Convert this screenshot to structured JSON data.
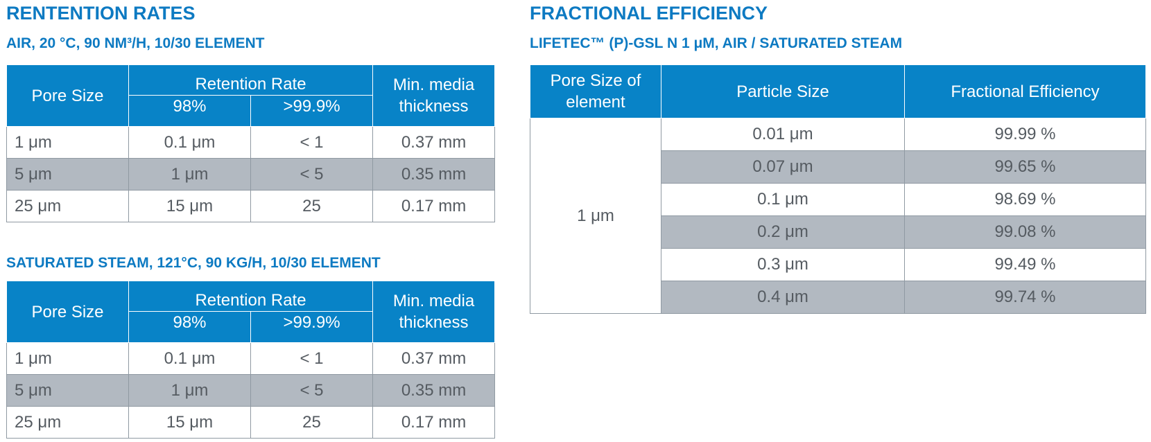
{
  "left": {
    "title": "RENTENTION RATES",
    "tables": [
      {
        "subtitle": "AIR, 20 °C, 90 NM³/H, 10/30 ELEMENT",
        "headers": {
          "pore_size": "Pore Size",
          "retention_rate": "Retention Rate",
          "col_98": "98%",
          "col_999": ">99.9%",
          "thickness_line1": "Min. media",
          "thickness_line2": "thickness"
        },
        "rows": [
          [
            "1 μm",
            "0.1 μm",
            "< 1",
            "0.37 mm"
          ],
          [
            "5 μm",
            "1 μm",
            "< 5",
            "0.35 mm"
          ],
          [
            "25 μm",
            "15 μm",
            "25",
            "0.17 mm"
          ]
        ]
      },
      {
        "subtitle": "SATURATED STEAM, 121°C, 90 KG/H, 10/30 ELEMENT",
        "headers": {
          "pore_size": "Pore Size",
          "retention_rate": "Retention Rate",
          "col_98": "98%",
          "col_999": ">99.9%",
          "thickness_line1": "Min. media",
          "thickness_line2": "thickness"
        },
        "rows": [
          [
            "1 μm",
            "0.1 μm",
            "< 1",
            "0.37 mm"
          ],
          [
            "5 μm",
            "1 μm",
            "< 5",
            "0.35 mm"
          ],
          [
            "25 μm",
            "15 μm",
            "25",
            "0.17 mm"
          ]
        ]
      }
    ]
  },
  "right": {
    "title": "FRACTIONAL EFFICIENCY",
    "subtitle": "LIFETEC™ (P)-GSL N 1 μM, AIR / SATURATED STEAM",
    "headers": {
      "pore_line1": "Pore Size of",
      "pore_line2": "element",
      "particle": "Particle Size",
      "efficiency": "Fractional Efficiency"
    },
    "pore_value": "1 μm",
    "rows": [
      [
        "0.01 μm",
        "99.99 %"
      ],
      [
        "0.07 μm",
        "99.65 %"
      ],
      [
        "0.1 μm",
        "98.69 %"
      ],
      [
        "0.2 μm",
        "99.08 %"
      ],
      [
        "0.3 μm",
        "99.49 %"
      ],
      [
        "0.4 μm",
        "99.74 %"
      ]
    ]
  },
  "colors": {
    "heading": "#0d7ac2",
    "header_bg": "#0883c7",
    "alt_row_bg": "#b2b9c1",
    "text": "#555b61"
  }
}
